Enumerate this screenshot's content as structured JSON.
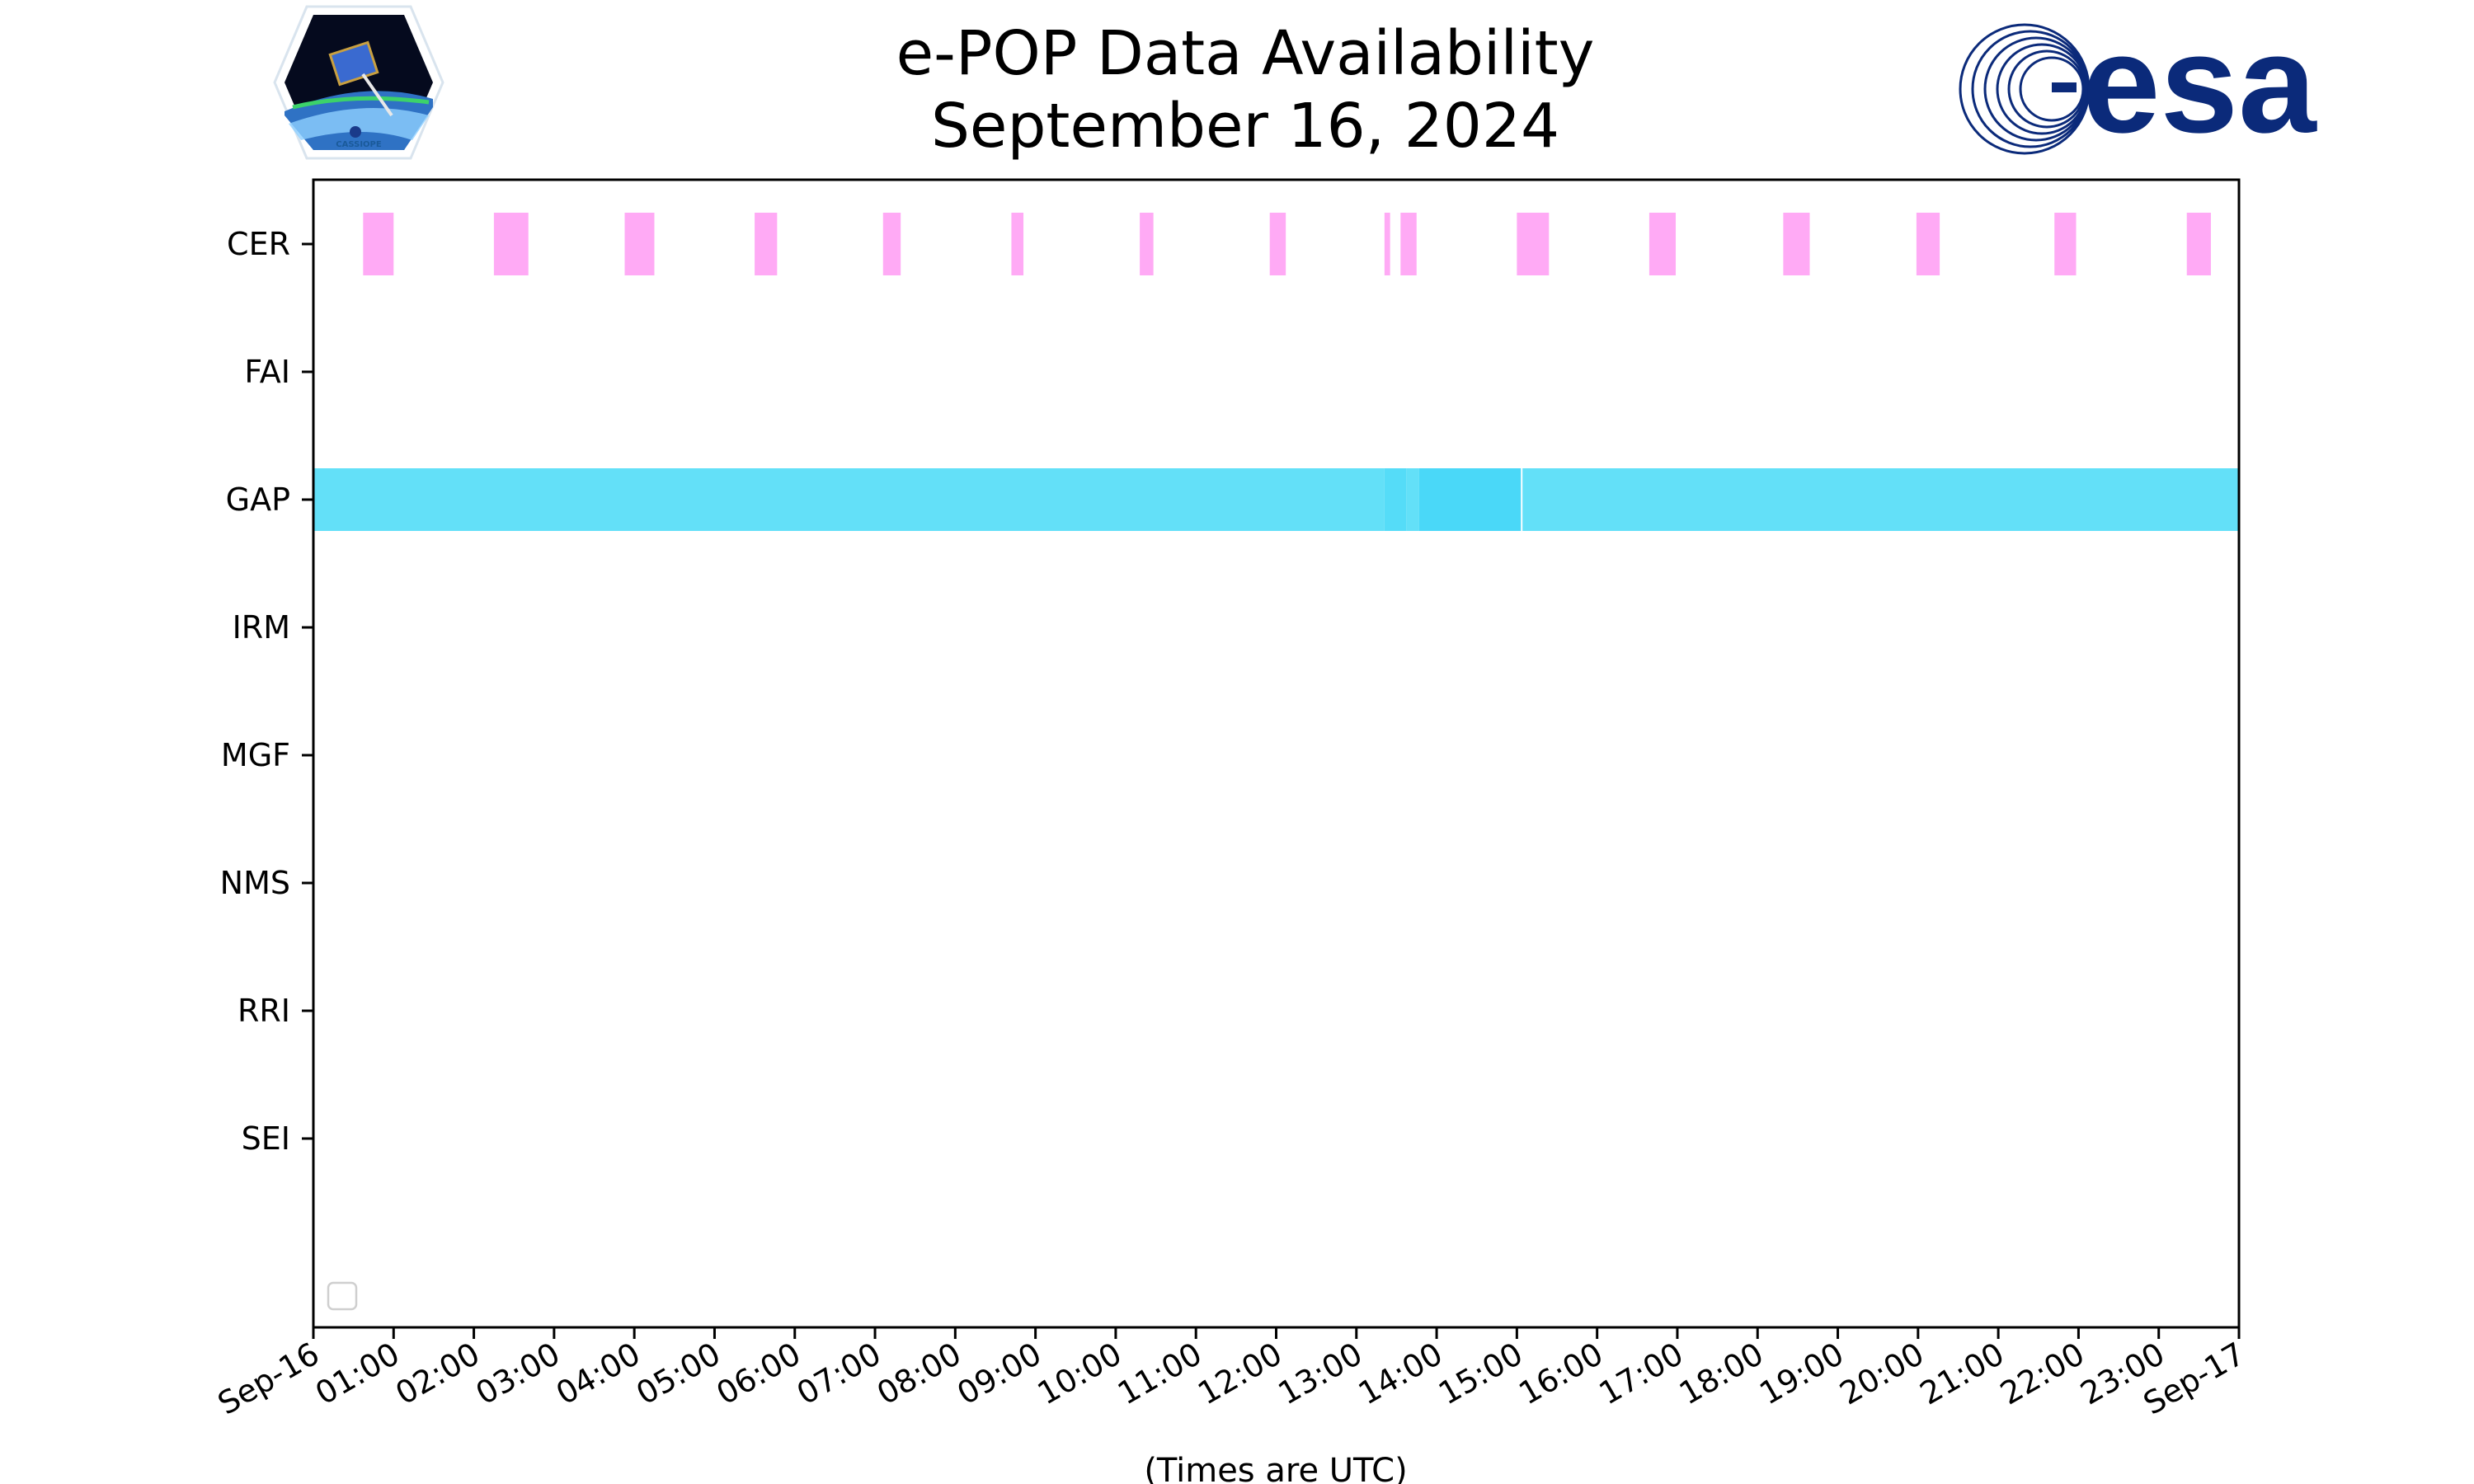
{
  "chart_data": {
    "type": "timeline",
    "title": "e-POP Data Availability",
    "subtitle": "September 16, 2024",
    "xlabel": "(Times are UTC)",
    "xlim_hours": [
      0,
      24
    ],
    "x_tick_labels": [
      "Sep-16",
      "01:00",
      "02:00",
      "03:00",
      "04:00",
      "05:00",
      "06:00",
      "07:00",
      "08:00",
      "09:00",
      "10:00",
      "11:00",
      "12:00",
      "13:00",
      "14:00",
      "15:00",
      "16:00",
      "17:00",
      "18:00",
      "19:00",
      "20:00",
      "21:00",
      "22:00",
      "23:00",
      "Sep-17"
    ],
    "instruments": [
      "CER",
      "FAI",
      "GAP",
      "IRM",
      "MGF",
      "NMS",
      "RRI",
      "SEI"
    ],
    "colors": {
      "CER": "#ffaaf5",
      "GAP": "#63e0f8",
      "GAP_dark": "#4ad8f8"
    },
    "series": [
      {
        "name": "CER",
        "color": "#ffaaf5",
        "intervals": [
          [
            0.62,
            1.0
          ],
          [
            2.25,
            2.68
          ],
          [
            3.88,
            4.25
          ],
          [
            5.5,
            5.78
          ],
          [
            7.1,
            7.32
          ],
          [
            8.7,
            8.85
          ],
          [
            10.3,
            10.47
          ],
          [
            11.92,
            12.12
          ],
          [
            13.35,
            13.42
          ],
          [
            13.55,
            13.75
          ],
          [
            15.0,
            15.4
          ],
          [
            16.65,
            16.98
          ],
          [
            18.32,
            18.65
          ],
          [
            19.98,
            20.27
          ],
          [
            21.7,
            21.97
          ],
          [
            23.35,
            23.65
          ]
        ]
      },
      {
        "name": "FAI",
        "color": "#ffaaf5",
        "intervals": []
      },
      {
        "name": "GAP",
        "color": "#63e0f8",
        "intervals": [
          [
            0.0,
            13.35
          ],
          [
            13.35,
            13.62
          ],
          [
            13.62,
            13.78
          ],
          [
            13.78,
            15.05
          ],
          [
            15.07,
            24.0
          ]
        ],
        "shades": [
          "#63e0f8",
          "#55dcf8",
          "#63e0f8",
          "#4ad8f8",
          "#63e0f8"
        ]
      },
      {
        "name": "IRM",
        "color": "#ffaaf5",
        "intervals": []
      },
      {
        "name": "MGF",
        "color": "#ffaaf5",
        "intervals": []
      },
      {
        "name": "NMS",
        "color": "#ffaaf5",
        "intervals": []
      },
      {
        "name": "RRI",
        "color": "#ffaaf5",
        "intervals": []
      },
      {
        "name": "SEI",
        "color": "#ffaaf5",
        "intervals": []
      }
    ],
    "grid": false,
    "legend": "bottom-left (empty)"
  },
  "logos": {
    "left": "cassiope-logo",
    "left_text": "CASSIOPE",
    "right": "esa-logo",
    "right_text": "esa"
  }
}
